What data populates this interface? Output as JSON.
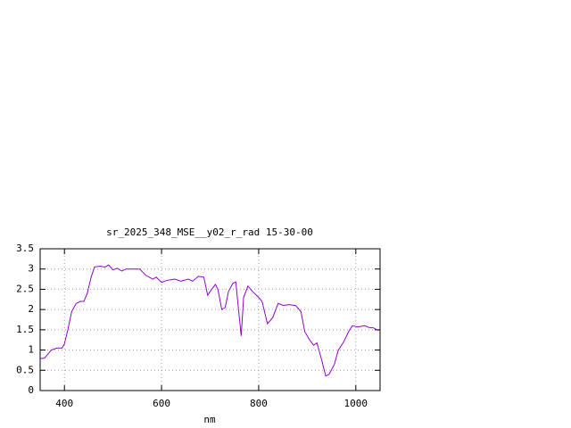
{
  "chart_data": {
    "type": "line",
    "title": "sr_2025_348_MSE__y02_r_rad 15-30-00",
    "x_label": "nm",
    "xlim": [
      350,
      1050
    ],
    "xticks": [
      400,
      600,
      800,
      1000
    ],
    "ylim": [
      0,
      3.5
    ],
    "yticks": [
      0,
      0.5,
      1,
      1.5,
      2,
      2.5,
      3,
      3.5
    ],
    "grid": true,
    "x": [
      350,
      359,
      373,
      385,
      395,
      400,
      407,
      415,
      424,
      433,
      440,
      447,
      455,
      462,
      473,
      484,
      491,
      500,
      509,
      518,
      527,
      538,
      555,
      567,
      582,
      589,
      600,
      611,
      627,
      640,
      655,
      664,
      676,
      687,
      695,
      702,
      711,
      716,
      724,
      731,
      738,
      747,
      753,
      756,
      764,
      769,
      778,
      787,
      800,
      807,
      818,
      829,
      840,
      851,
      862,
      876,
      887,
      895,
      905,
      913,
      920,
      931,
      938,
      945,
      956,
      964,
      975,
      985,
      993,
      1004,
      1018,
      1029,
      1036,
      1047
    ],
    "series": [
      {
        "color": "#9400d3",
        "values": [
          0.79,
          0.8,
          1.0,
          1.05,
          1.05,
          1.15,
          1.5,
          1.95,
          2.15,
          2.2,
          2.2,
          2.4,
          2.8,
          3.05,
          3.07,
          3.05,
          3.1,
          2.98,
          3.02,
          2.95,
          3.0,
          3.0,
          3.0,
          2.85,
          2.75,
          2.8,
          2.67,
          2.72,
          2.75,
          2.7,
          2.75,
          2.7,
          2.82,
          2.8,
          2.35,
          2.48,
          2.62,
          2.5,
          2.0,
          2.05,
          2.45,
          2.65,
          2.68,
          2.3,
          1.35,
          2.3,
          2.58,
          2.45,
          2.3,
          2.2,
          1.65,
          1.8,
          2.15,
          2.1,
          2.12,
          2.1,
          1.95,
          1.45,
          1.25,
          1.12,
          1.18,
          0.7,
          0.36,
          0.4,
          0.65,
          1.0,
          1.2,
          1.45,
          1.6,
          1.57,
          1.6,
          1.55,
          1.55,
          1.48
        ]
      }
    ]
  }
}
